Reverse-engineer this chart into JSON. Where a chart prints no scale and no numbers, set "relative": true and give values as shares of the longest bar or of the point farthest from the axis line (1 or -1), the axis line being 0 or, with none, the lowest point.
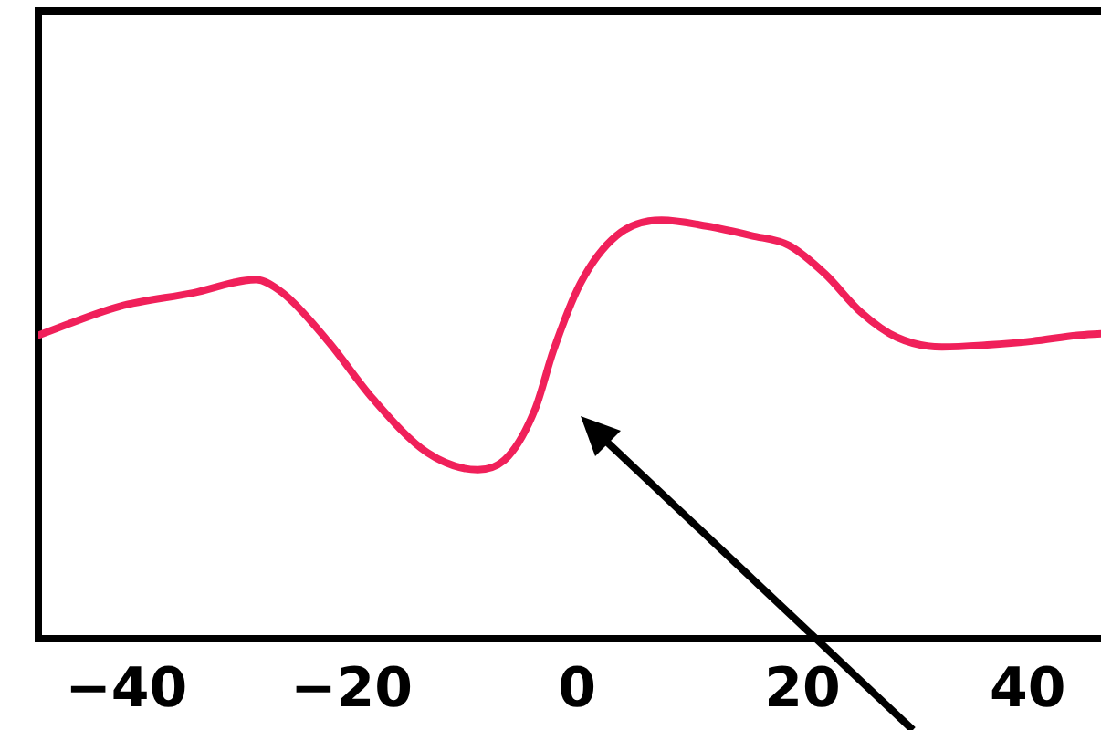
{
  "chart_data": {
    "type": "line",
    "relative": true,
    "xlim": [
      -47.8,
      46.5
    ],
    "xticks": [
      -40,
      -20,
      0,
      20,
      40
    ],
    "series": [
      {
        "color": "#f0205a",
        "x": [
          -47.8,
          -40.6,
          -34.1,
          -28.5,
          -26.1,
          -22.1,
          -18.1,
          -13.3,
          -8.8,
          -6.1,
          -3.7,
          -2.1,
          0.3,
          3.5,
          7.5,
          11.5,
          15.5,
          18.8,
          22.0,
          25.2,
          28.4,
          32.4,
          36.4,
          40.4,
          44.4,
          46.5
        ],
        "values": [
          0.725,
          0.794,
          0.826,
          0.858,
          0.826,
          0.711,
          0.573,
          0.445,
          0.404,
          0.436,
          0.55,
          0.688,
          0.849,
          0.963,
          1.0,
          0.986,
          0.963,
          0.94,
          0.872,
          0.78,
          0.72,
          0.697,
          0.702,
          0.711,
          0.725,
          0.729
        ]
      }
    ],
    "grid": false,
    "legend": false,
    "marker": "none",
    "line_style": "solid"
  }
}
